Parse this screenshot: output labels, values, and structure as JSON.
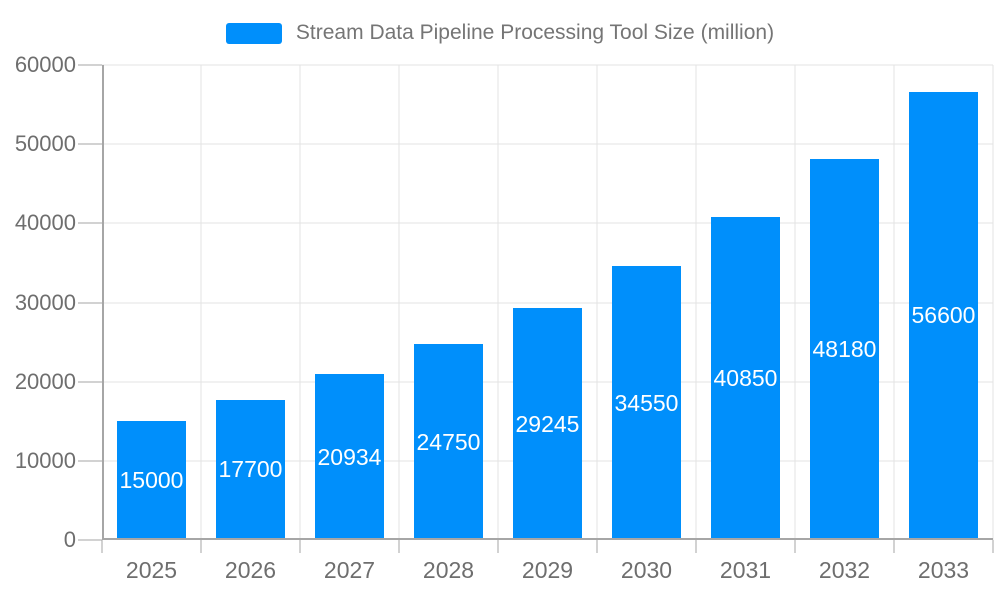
{
  "legend": {
    "label": "Stream Data Pipeline Processing Tool Size (million)"
  },
  "chart_data": {
    "type": "bar",
    "title": "Stream Data Pipeline Processing Tool Size (million)",
    "categories": [
      "2025",
      "2026",
      "2027",
      "2028",
      "2029",
      "2030",
      "2031",
      "2032",
      "2033"
    ],
    "values": [
      15000,
      17700,
      20934,
      24750,
      29245,
      34550,
      40850,
      48180,
      56600
    ],
    "xlabel": "",
    "ylabel": "",
    "ylim": [
      0,
      60000
    ],
    "yticks": [
      0,
      10000,
      20000,
      30000,
      40000,
      50000,
      60000
    ],
    "grid": "horizontal and vertical gridlines",
    "legend_position": "top-center",
    "value_labels": "white, centered inside bars"
  },
  "colors": {
    "bar": "#008FFB",
    "bar-label": "#ffffff",
    "axis-line": "#a6a6a6",
    "gridline": "#e3e3e3",
    "axis-label": "#6e6e6e",
    "title": "#757575",
    "background": "#ffffff"
  }
}
